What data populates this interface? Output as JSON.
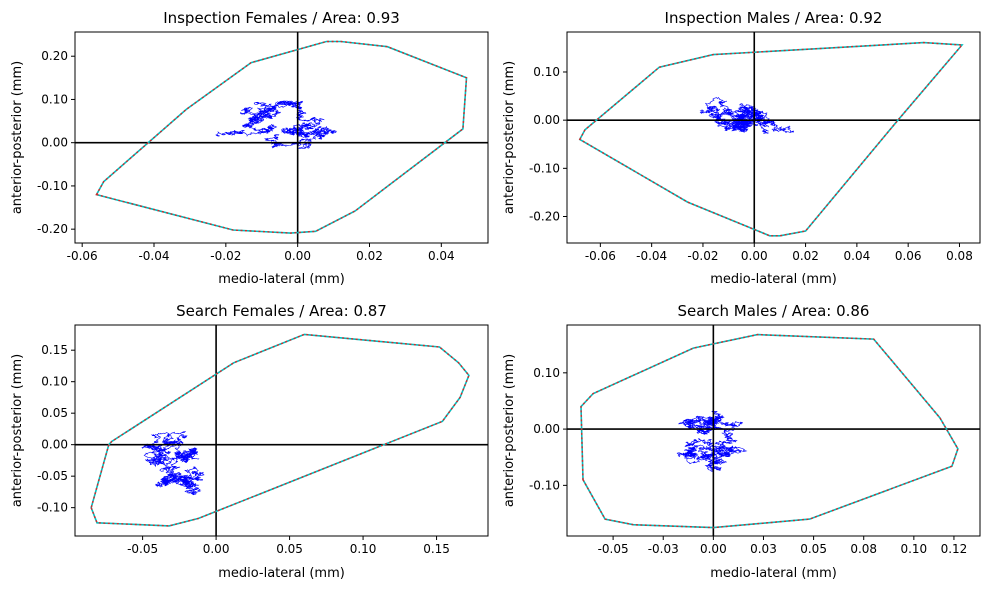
{
  "colors": {
    "trajectory": "#0000ff",
    "hull_edge": "#00bfbf",
    "hull_dash": "#d62728",
    "zero_axes": "#000000",
    "frame": "#000000"
  },
  "chart_data": [
    {
      "type": "line",
      "title": "Inspection Females / Area: 0.93",
      "xlabel": "medio-lateral (mm)",
      "ylabel": "anterior-posterior (mm)",
      "xlim": [
        -0.062,
        0.053
      ],
      "ylim": [
        -0.232,
        0.256
      ],
      "xticks": [
        -0.06,
        -0.04,
        -0.02,
        0.0,
        0.02,
        0.04
      ],
      "xtick_labels": [
        "-0.06",
        "-0.04",
        "-0.02",
        "0.00",
        "0.02",
        "0.04"
      ],
      "yticks": [
        -0.2,
        -0.1,
        0.0,
        0.1,
        0.2
      ],
      "ytick_labels": [
        "-0.20",
        "-0.10",
        "0.00",
        "0.10",
        "0.20"
      ],
      "hull": [
        [
          -0.056,
          -0.12
        ],
        [
          -0.018,
          -0.202
        ],
        [
          -0.002,
          -0.209
        ],
        [
          0.005,
          -0.205
        ],
        [
          0.016,
          -0.158
        ],
        [
          0.046,
          0.032
        ],
        [
          0.047,
          0.15
        ],
        [
          0.025,
          0.222
        ],
        [
          0.012,
          0.234
        ],
        [
          0.008,
          0.234
        ],
        [
          -0.013,
          0.185
        ],
        [
          -0.031,
          0.077
        ],
        [
          -0.054,
          -0.09
        ]
      ],
      "trajectory_center": [
        -0.005,
        0.02
      ],
      "trajectory_spread": [
        0.021,
        0.075
      ],
      "seed": 11,
      "grid": false,
      "legend": "none"
    },
    {
      "type": "line",
      "title": "Inspection Males / Area: 0.92",
      "xlabel": "medio-lateral (mm)",
      "ylabel": "anterior-posterior (mm)",
      "xlim": [
        -0.073,
        0.088
      ],
      "ylim": [
        -0.255,
        0.183
      ],
      "xticks": [
        -0.06,
        -0.04,
        -0.02,
        0.0,
        0.02,
        0.04,
        0.06,
        0.08
      ],
      "xtick_labels": [
        "-0.06",
        "-0.04",
        "-0.02",
        "0.00",
        "0.02",
        "0.04",
        "0.06",
        "0.08"
      ],
      "yticks": [
        -0.2,
        -0.1,
        0.0,
        0.1
      ],
      "ytick_labels": [
        "-0.20",
        "-0.10",
        "0.00",
        "0.10"
      ],
      "hull": [
        [
          -0.068,
          -0.04
        ],
        [
          -0.066,
          -0.02
        ],
        [
          -0.037,
          0.11
        ],
        [
          -0.016,
          0.136
        ],
        [
          0.066,
          0.161
        ],
        [
          0.081,
          0.156
        ],
        [
          0.056,
          0.0
        ],
        [
          0.02,
          -0.23
        ],
        [
          0.01,
          -0.24
        ],
        [
          0.006,
          -0.24
        ],
        [
          -0.026,
          -0.17
        ]
      ],
      "trajectory_center": [
        -0.002,
        0.015
      ],
      "trajectory_spread": [
        0.022,
        0.05
      ],
      "seed": 23,
      "grid": false,
      "legend": "none"
    },
    {
      "type": "line",
      "title": "Search Females / Area: 0.87",
      "xlabel": "medio-lateral (mm)",
      "ylabel": "anterior-posterior (mm)",
      "xlim": [
        -0.096,
        0.185
      ],
      "ylim": [
        -0.145,
        0.19
      ],
      "xticks": [
        -0.05,
        0.0,
        0.05,
        0.1,
        0.15
      ],
      "xtick_labels": [
        "-0.05",
        "0.00",
        "0.05",
        "0.10",
        "0.15"
      ],
      "yticks": [
        -0.1,
        -0.05,
        0.0,
        0.05,
        0.1,
        0.15
      ],
      "ytick_labels": [
        "-0.10",
        "-0.05",
        "0.00",
        "0.05",
        "0.10",
        "0.15"
      ],
      "hull": [
        [
          -0.085,
          -0.1
        ],
        [
          -0.081,
          -0.124
        ],
        [
          -0.032,
          -0.129
        ],
        [
          -0.012,
          -0.117
        ],
        [
          0.154,
          0.037
        ],
        [
          0.166,
          0.075
        ],
        [
          0.172,
          0.11
        ],
        [
          0.165,
          0.13
        ],
        [
          0.152,
          0.155
        ],
        [
          0.06,
          0.175
        ],
        [
          0.012,
          0.13
        ],
        [
          -0.071,
          0.005
        ],
        [
          -0.073,
          0.0
        ]
      ],
      "trajectory_center": [
        -0.025,
        -0.02
      ],
      "trajectory_spread": [
        0.032,
        0.045
      ],
      "seed": 37,
      "grid": false,
      "legend": "none"
    },
    {
      "type": "line",
      "title": "Search Males / Area: 0.86",
      "xlabel": "medio-lateral (mm)",
      "ylabel": "anterior-posterior (mm)",
      "xlim": [
        -0.073,
        0.133
      ],
      "ylim": [
        -0.19,
        0.185
      ],
      "xticks": [
        -0.05,
        -0.025,
        0.0,
        0.025,
        0.05,
        0.075,
        0.1,
        0.12
      ],
      "xtick_labels": [
        "-0.05",
        "-0.03",
        "0.00",
        "0.03",
        "0.05",
        "0.08",
        "0.10",
        "0.12"
      ],
      "yticks": [
        -0.1,
        0.0,
        0.1
      ],
      "ytick_labels": [
        "-0.10",
        "0.00",
        "0.10"
      ],
      "hull": [
        [
          -0.065,
          -0.09
        ],
        [
          -0.054,
          -0.16
        ],
        [
          -0.04,
          -0.17
        ],
        [
          0.0,
          -0.175
        ],
        [
          0.048,
          -0.16
        ],
        [
          0.119,
          -0.066
        ],
        [
          0.122,
          -0.035
        ],
        [
          0.113,
          0.02
        ],
        [
          0.08,
          0.16
        ],
        [
          0.022,
          0.168
        ],
        [
          -0.01,
          0.144
        ],
        [
          -0.06,
          0.063
        ],
        [
          -0.066,
          0.04
        ]
      ],
      "trajectory_center": [
        0.0,
        0.02
      ],
      "trajectory_spread": [
        0.026,
        0.06
      ],
      "seed": 53,
      "grid": false,
      "legend": "none"
    }
  ]
}
